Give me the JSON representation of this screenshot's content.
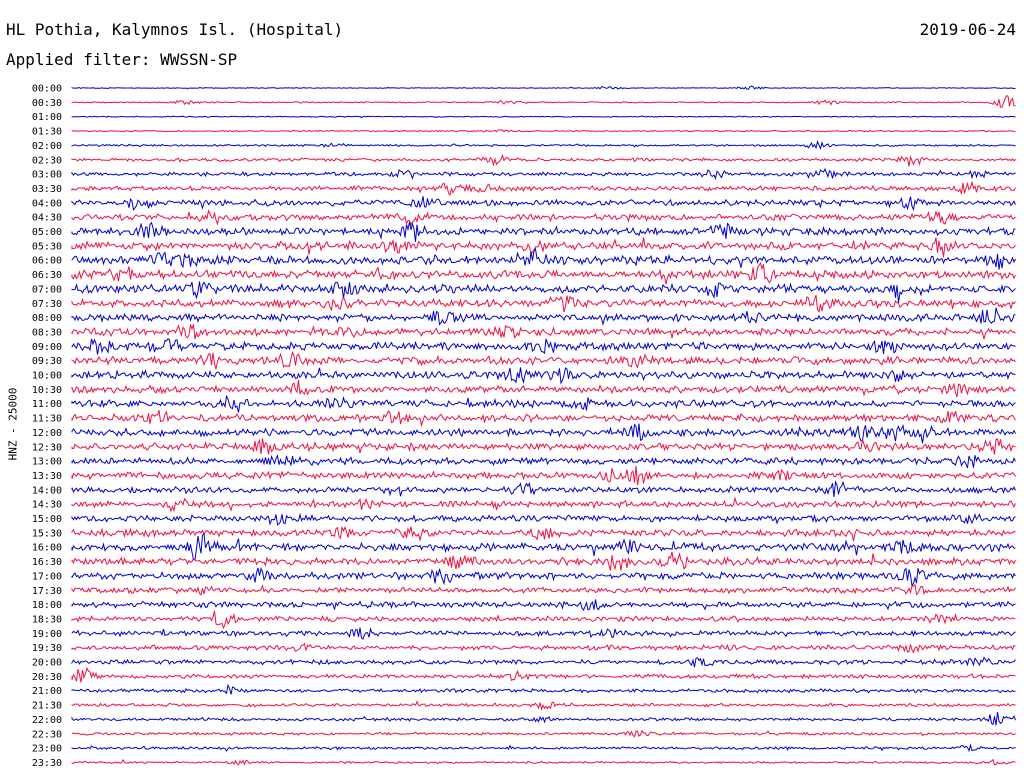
{
  "header": {
    "station": "HL Pothia, Kalymnos Isl. (Hospital)",
    "date": "2019-06-24",
    "filter": "Applied filter: WWSSN-SP"
  },
  "chart_data": {
    "type": "line",
    "title": "HL Pothia, Kalymnos Isl. (Hospital)",
    "subtitle": "Applied filter: WWSSN-SP",
    "ylabel": "HNZ - 25000",
    "xlabel": "",
    "categories": [
      "00:00",
      "00:30",
      "01:00",
      "01:30",
      "02:00",
      "02:30",
      "03:00",
      "03:30",
      "04:00",
      "04:30",
      "05:00",
      "05:30",
      "06:00",
      "06:30",
      "07:00",
      "07:30",
      "08:00",
      "08:30",
      "09:00",
      "09:30",
      "10:00",
      "10:30",
      "11:00",
      "11:30",
      "12:00",
      "12:30",
      "13:00",
      "13:30",
      "14:00",
      "14:30",
      "15:00",
      "15:30",
      "16:00",
      "16:30",
      "17:00",
      "17:30",
      "18:00",
      "18:30",
      "19:00",
      "19:30",
      "20:00",
      "20:30",
      "21:00",
      "21:30",
      "22:00",
      "22:30",
      "23:00",
      "23:30"
    ],
    "colors": [
      "#0000cc",
      "#ee1144"
    ],
    "noise_level": [
      0.3,
      0.5,
      0.4,
      0.5,
      0.8,
      1.2,
      1.5,
      1.8,
      2.2,
      2.4,
      2.8,
      3.0,
      3.2,
      3.2,
      3.2,
      3.0,
      2.8,
      2.8,
      3.0,
      3.0,
      2.8,
      2.8,
      2.8,
      2.8,
      2.8,
      2.8,
      2.6,
      2.6,
      2.4,
      2.4,
      2.4,
      2.6,
      3.0,
      2.8,
      2.6,
      2.2,
      2.2,
      2.0,
      2.0,
      1.8,
      1.8,
      1.6,
      1.4,
      1.2,
      1.2,
      1.0,
      1.0,
      0.8
    ],
    "events": [
      [
        [
          0.57,
          1.5
        ],
        [
          0.72,
          1.5
        ]
      ],
      [
        [
          0.12,
          2.0
        ],
        [
          0.8,
          2.0
        ],
        [
          0.99,
          7.0
        ],
        [
          0.46,
          1.5
        ]
      ],
      [],
      [
        [
          0.45,
          1.2
        ]
      ],
      [
        [
          0.79,
          3.0
        ],
        [
          0.28,
          1.5
        ]
      ],
      [
        [
          0.45,
          5.0
        ],
        [
          0.89,
          6.0
        ]
      ],
      [
        [
          0.68,
          5.0
        ],
        [
          0.8,
          5.0
        ],
        [
          0.35,
          3.0
        ],
        [
          0.96,
          3.0
        ]
      ],
      [
        [
          0.4,
          5.0
        ],
        [
          0.43,
          4.0
        ],
        [
          0.95,
          7.0
        ]
      ],
      [
        [
          0.07,
          7.0
        ],
        [
          0.37,
          5.0
        ],
        [
          0.89,
          5.0
        ]
      ],
      [
        [
          0.36,
          6.0
        ],
        [
          0.92,
          6.0
        ],
        [
          0.14,
          4.0
        ]
      ],
      [
        [
          0.08,
          7.0
        ],
        [
          0.36,
          7.0
        ],
        [
          0.69,
          7.0
        ]
      ],
      [
        [
          0.34,
          5.0
        ],
        [
          0.49,
          7.0
        ],
        [
          0.92,
          5.0
        ]
      ],
      [
        [
          0.09,
          6.0
        ],
        [
          0.49,
          8.0
        ],
        [
          0.98,
          6.0
        ],
        [
          0.12,
          4.0
        ]
      ],
      [
        [
          0.73,
          8.0
        ],
        [
          0.33,
          4.0
        ],
        [
          0.05,
          3.0
        ]
      ],
      [
        [
          0.13,
          7.0
        ],
        [
          0.29,
          8.0
        ],
        [
          0.68,
          6.0
        ],
        [
          0.87,
          6.0
        ]
      ],
      [
        [
          0.52,
          6.0
        ],
        [
          0.79,
          7.0
        ],
        [
          0.28,
          5.0
        ]
      ],
      [
        [
          0.39,
          6.0
        ],
        [
          0.97,
          6.0
        ],
        [
          0.72,
          4.0
        ]
      ],
      [
        [
          0.13,
          6.0
        ],
        [
          0.29,
          4.0
        ],
        [
          0.46,
          4.0
        ]
      ],
      [
        [
          0.03,
          6.0
        ],
        [
          0.1,
          6.0
        ],
        [
          0.86,
          6.0
        ],
        [
          0.5,
          5.0
        ]
      ],
      [
        [
          0.6,
          8.0
        ],
        [
          0.23,
          6.0
        ],
        [
          0.15,
          5.0
        ]
      ],
      [
        [
          0.47,
          7.0
        ],
        [
          0.52,
          5.0
        ],
        [
          0.87,
          4.0
        ]
      ],
      [
        [
          0.24,
          4.0
        ],
        [
          0.94,
          5.0
        ]
      ],
      [
        [
          0.17,
          5.0
        ],
        [
          0.28,
          4.0
        ],
        [
          0.54,
          4.0
        ]
      ],
      [
        [
          0.09,
          6.0
        ],
        [
          0.34,
          5.0
        ],
        [
          0.93,
          4.0
        ]
      ],
      [
        [
          0.6,
          7.0
        ],
        [
          0.84,
          7.0
        ],
        [
          0.87,
          6.0
        ],
        [
          0.9,
          5.0
        ]
      ],
      [
        [
          0.2,
          6.0
        ],
        [
          0.84,
          5.0
        ],
        [
          0.98,
          6.0
        ]
      ],
      [
        [
          0.22,
          6.0
        ],
        [
          0.95,
          5.0
        ]
      ],
      [
        [
          0.57,
          6.0
        ],
        [
          0.6,
          7.0
        ],
        [
          0.75,
          4.0
        ]
      ],
      [
        [
          0.48,
          6.0
        ],
        [
          0.81,
          6.0
        ]
      ],
      [
        [
          0.11,
          5.0
        ],
        [
          0.31,
          4.0
        ]
      ],
      [
        [
          0.22,
          6.0
        ],
        [
          0.95,
          4.0
        ]
      ],
      [
        [
          0.28,
          5.0
        ],
        [
          0.36,
          6.0
        ],
        [
          0.5,
          5.0
        ]
      ],
      [
        [
          0.13,
          7.0
        ],
        [
          0.14,
          7.0
        ],
        [
          0.59,
          6.0
        ],
        [
          0.88,
          6.0
        ]
      ],
      [
        [
          0.41,
          5.0
        ],
        [
          0.64,
          8.0
        ],
        [
          0.58,
          4.0
        ]
      ],
      [
        [
          0.2,
          6.0
        ],
        [
          0.39,
          5.0
        ],
        [
          0.89,
          8.0
        ]
      ],
      [
        [
          0.89,
          4.0
        ],
        [
          0.14,
          3.0
        ]
      ],
      [
        [
          0.55,
          4.0
        ],
        [
          0.89,
          3.0
        ]
      ],
      [
        [
          0.16,
          5.0
        ],
        [
          0.92,
          4.0
        ]
      ],
      [
        [
          0.31,
          5.0
        ],
        [
          0.57,
          4.0
        ]
      ],
      [
        [
          0.89,
          3.0
        ],
        [
          0.24,
          3.0
        ]
      ],
      [
        [
          0.67,
          4.0
        ],
        [
          0.96,
          3.0
        ]
      ],
      [
        [
          0.01,
          8.0
        ],
        [
          0.47,
          3.0
        ]
      ],
      [
        [
          0.17,
          3.0
        ]
      ],
      [
        [
          0.5,
          3.0
        ]
      ],
      [
        [
          0.98,
          7.0
        ],
        [
          0.5,
          2.0
        ]
      ],
      [
        [
          0.6,
          2.5
        ]
      ],
      [
        [
          0.95,
          2.0
        ]
      ],
      [
        [
          0.18,
          1.5
        ],
        [
          0.98,
          2.0
        ]
      ]
    ]
  }
}
